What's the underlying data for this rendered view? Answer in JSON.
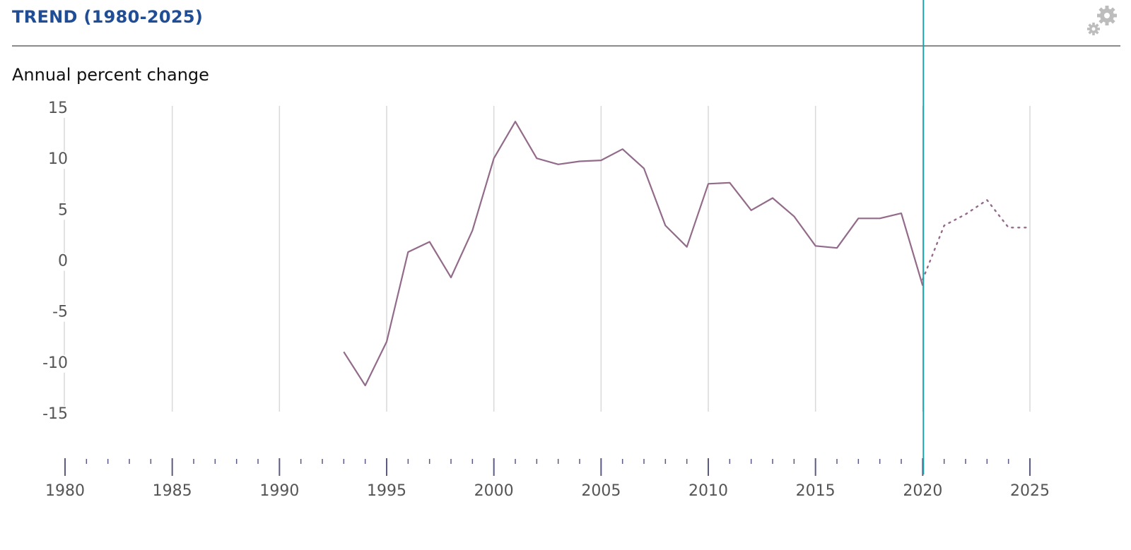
{
  "header": {
    "title": "TREND (1980-2025)"
  },
  "colors": {
    "title": "#1f4e96",
    "series": "#936b8a",
    "marker_line": "#1ba3a8",
    "grid": "#d9d9d9",
    "axis_ticks": "#5b5a82",
    "gear": "#bdbdbd"
  },
  "icons": {
    "settings": "gear-icon"
  },
  "chart_data": {
    "type": "line",
    "title": "TREND (1980-2025)",
    "ylabel": "Annual percent change",
    "xlabel": "",
    "ylim": [
      -15,
      15
    ],
    "xlim": [
      1980,
      2025
    ],
    "yticks": [
      15,
      10,
      5,
      0,
      -5,
      -10,
      -15
    ],
    "xticks": [
      1980,
      1985,
      1990,
      1995,
      2000,
      2005,
      2010,
      2015,
      2020,
      2025
    ],
    "grid": "vertical",
    "vertical_marker": 2020,
    "series": [
      {
        "style": "solid",
        "x": [
          1993,
          1994,
          1995,
          1996,
          1997,
          1998,
          1999,
          2000,
          2001,
          2002,
          2003,
          2004,
          2005,
          2006,
          2007,
          2008,
          2009,
          2010,
          2011,
          2012,
          2013,
          2014,
          2015,
          2016,
          2017,
          2018,
          2019,
          2020
        ],
        "y": [
          -9,
          -12.3,
          -8,
          0.8,
          1.8,
          -1.7,
          2.9,
          10,
          13.6,
          10,
          9.4,
          9.7,
          9.8,
          10.9,
          9,
          3.4,
          1.3,
          7.5,
          7.6,
          4.9,
          6.1,
          4.3,
          1.4,
          1.2,
          4.1,
          4.1,
          4.6,
          -2.5
        ]
      },
      {
        "style": "dotted",
        "x": [
          2020,
          2021,
          2022,
          2023,
          2024,
          2025
        ],
        "y": [
          -1.9,
          3.4,
          4.5,
          5.9,
          3.2,
          3.2
        ]
      }
    ]
  }
}
